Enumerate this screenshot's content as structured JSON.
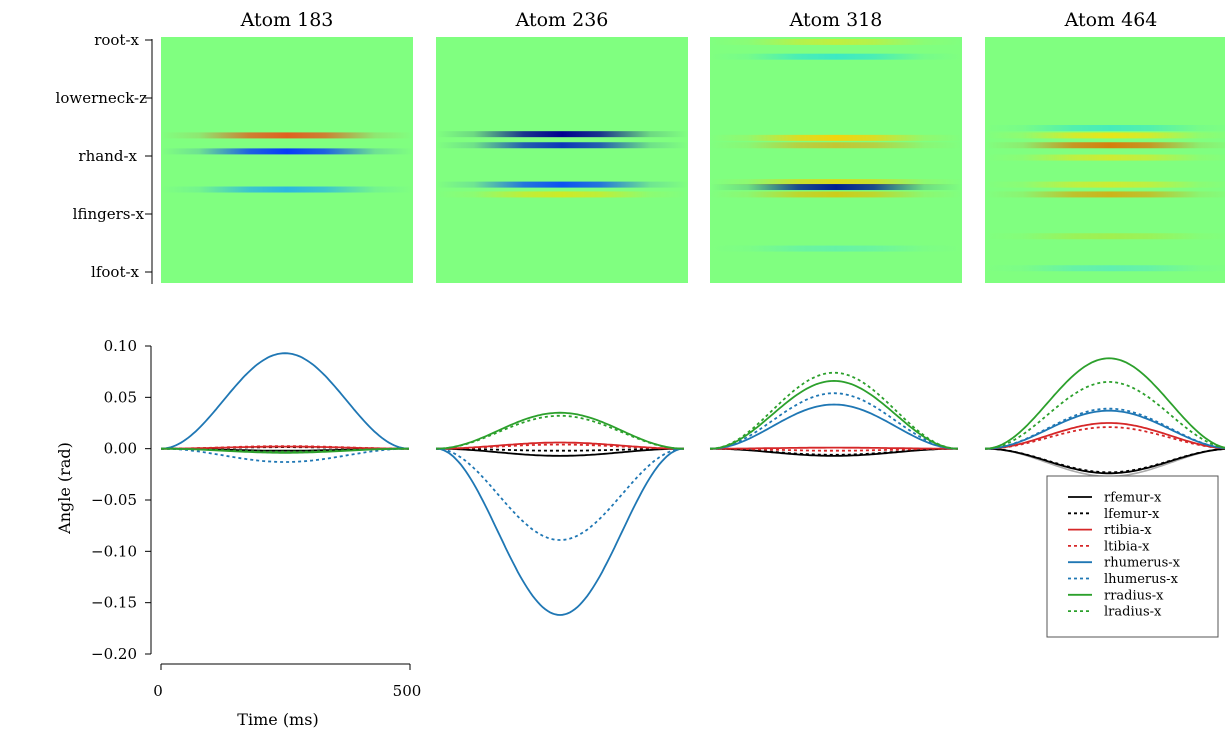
{
  "chart_data": [
    {
      "type": "heatmap",
      "panel": "top-row",
      "titles": [
        "Atom 183",
        "Atom 236",
        "Atom 318",
        "Atom 464"
      ],
      "ytick_labels": [
        "root-x",
        "lowerneck-z",
        "rhand-x",
        "lfingers-x",
        "lfoot-x"
      ],
      "colormap": "jet",
      "background_color": "#80ff80",
      "bands": [
        [
          {
            "row": 0.4,
            "color": "#e06020",
            "intensity": 1.0
          },
          {
            "row": 0.465,
            "color": "#0030ff",
            "intensity": 0.95
          },
          {
            "row": 0.62,
            "color": "#10a0ff",
            "intensity": 0.75
          }
        ],
        [
          {
            "row": 0.395,
            "color": "#000090",
            "intensity": 1.0
          },
          {
            "row": 0.44,
            "color": "#0020c0",
            "intensity": 0.9
          },
          {
            "row": 0.6,
            "color": "#0040ff",
            "intensity": 0.9
          },
          {
            "row": 0.64,
            "color": "#f0e000",
            "intensity": 0.7
          }
        ],
        [
          {
            "row": 0.02,
            "color": "#ffe000",
            "intensity": 0.5
          },
          {
            "row": 0.08,
            "color": "#20e0e0",
            "intensity": 0.7
          },
          {
            "row": 0.41,
            "color": "#ffd000",
            "intensity": 0.9
          },
          {
            "row": 0.44,
            "color": "#f0a000",
            "intensity": 0.6
          },
          {
            "row": 0.59,
            "color": "#f0d000",
            "intensity": 0.8
          },
          {
            "row": 0.61,
            "color": "#002090",
            "intensity": 1.0
          },
          {
            "row": 0.64,
            "color": "#e0c000",
            "intensity": 0.8
          },
          {
            "row": 0.86,
            "color": "#40e0e0",
            "intensity": 0.4
          }
        ],
        [
          {
            "row": 0.37,
            "color": "#20e0e0",
            "intensity": 0.6
          },
          {
            "row": 0.4,
            "color": "#ffe000",
            "intensity": 0.8
          },
          {
            "row": 0.44,
            "color": "#e07000",
            "intensity": 0.9
          },
          {
            "row": 0.49,
            "color": "#ffe000",
            "intensity": 0.6
          },
          {
            "row": 0.6,
            "color": "#ffe000",
            "intensity": 0.6
          },
          {
            "row": 0.64,
            "color": "#e0a000",
            "intensity": 0.8
          },
          {
            "row": 0.81,
            "color": "#c0e020",
            "intensity": 0.5
          },
          {
            "row": 0.94,
            "color": "#40e0e0",
            "intensity": 0.5
          }
        ]
      ]
    },
    {
      "type": "line",
      "panel": "bottom-row",
      "xlabel": "Time (ms)",
      "ylabel": "Angle (rad)",
      "xlim": [
        0,
        500
      ],
      "ylim": [
        -0.2,
        0.1
      ],
      "xticks": [
        0,
        500
      ],
      "xtick_labels": [
        "0",
        "500"
      ],
      "yticks": [
        0.1,
        0.05,
        0.0,
        -0.05,
        -0.1,
        -0.15,
        -0.2
      ],
      "ytick_labels": [
        "0.10",
        "0.05",
        "0.00",
        "−0.05",
        "−0.10",
        "−0.15",
        "−0.20"
      ],
      "shape": "raised-cosine bump: value(t) = peak * (1 - cos(2*pi*t/500)) / 2, peak at t = 250",
      "legend": {
        "placement": "lower-right"
      },
      "series": [
        {
          "name": "rfemur-x",
          "color": "#000000",
          "dash": "solid"
        },
        {
          "name": "lfemur-x",
          "color": "#000000",
          "dash": "dotted"
        },
        {
          "name": "rtibia-x",
          "color": "#d62728",
          "dash": "solid"
        },
        {
          "name": "ltibia-x",
          "color": "#d62728",
          "dash": "dotted"
        },
        {
          "name": "rhumerus-x",
          "color": "#1f77b4",
          "dash": "solid"
        },
        {
          "name": "lhumerus-x",
          "color": "#1f77b4",
          "dash": "dotted"
        },
        {
          "name": "rradius-x",
          "color": "#2ca02c",
          "dash": "solid"
        },
        {
          "name": "lradius-x",
          "color": "#2ca02c",
          "dash": "dotted"
        }
      ],
      "atoms": [
        {
          "title": "Atom 183",
          "peaks": [
            -0.002,
            0.0015,
            0.002,
            0.0025,
            0.093,
            -0.013,
            -0.004,
            -0.003
          ]
        },
        {
          "title": "Atom 236",
          "peaks": [
            -0.007,
            -0.002,
            0.006,
            0.004,
            -0.162,
            -0.089,
            0.035,
            0.032
          ]
        },
        {
          "title": "Atom 318",
          "peaks": [
            -0.007,
            -0.006,
            0.001,
            -0.002,
            0.043,
            0.054,
            0.066,
            0.074
          ]
        },
        {
          "title": "Atom 464",
          "peaks": [
            -0.024,
            -0.023,
            0.025,
            0.021,
            0.037,
            0.039,
            0.088,
            0.065
          ]
        }
      ]
    }
  ]
}
